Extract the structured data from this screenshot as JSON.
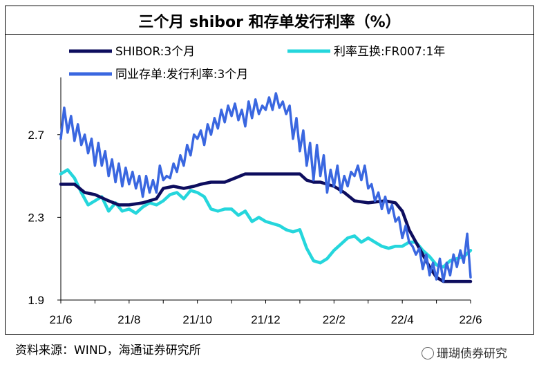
{
  "chart_data": {
    "type": "line",
    "title": "三个月 shibor 和存单发行利率（%）",
    "xlabel": "",
    "ylabel": "",
    "ylim": [
      1.9,
      2.95
    ],
    "yticks": [
      1.9,
      2.3,
      2.7
    ],
    "ytick_labels": [
      "1.9",
      "2.3",
      "2.7"
    ],
    "xtick_labels": [
      "21/6",
      "21/8",
      "21/10",
      "21/12",
      "22/2",
      "22/4",
      "22/6"
    ],
    "xtick_positions": [
      0,
      2,
      4,
      6,
      8,
      10,
      12
    ],
    "xlim": [
      0,
      12
    ],
    "legend_placement": "top",
    "series": [
      {
        "name": "SHIBOR:3个月",
        "color": "#0d0d5e",
        "x": [
          0,
          0.4,
          0.7,
          1.0,
          1.4,
          1.7,
          2.0,
          2.4,
          2.8,
          3.0,
          3.3,
          3.6,
          3.9,
          4.1,
          4.4,
          4.8,
          5.1,
          5.4,
          5.8,
          6.2,
          6.6,
          7.0,
          7.2,
          7.4,
          7.6,
          8.0,
          8.3,
          8.6,
          9.0,
          9.5,
          9.8,
          10.0,
          10.2,
          10.4,
          10.6,
          10.8,
          11.0,
          11.2,
          11.4,
          11.6,
          11.8,
          12.0
        ],
        "values": [
          2.46,
          2.46,
          2.42,
          2.41,
          2.38,
          2.36,
          2.36,
          2.37,
          2.39,
          2.44,
          2.45,
          2.44,
          2.45,
          2.46,
          2.47,
          2.47,
          2.49,
          2.51,
          2.51,
          2.51,
          2.51,
          2.51,
          2.48,
          2.47,
          2.47,
          2.45,
          2.42,
          2.38,
          2.37,
          2.38,
          2.37,
          2.33,
          2.24,
          2.18,
          2.12,
          2.06,
          2.01,
          1.99,
          1.99,
          1.99,
          1.99,
          1.99
        ]
      },
      {
        "name": "利率互换:FR007:1年",
        "color": "#25d6dc",
        "x": [
          0,
          0.2,
          0.4,
          0.6,
          0.8,
          1.0,
          1.2,
          1.4,
          1.6,
          1.8,
          2.0,
          2.2,
          2.4,
          2.6,
          2.8,
          3.0,
          3.2,
          3.4,
          3.6,
          3.8,
          4.0,
          4.2,
          4.4,
          4.6,
          4.8,
          5.0,
          5.2,
          5.4,
          5.6,
          5.8,
          6.0,
          6.2,
          6.4,
          6.6,
          6.8,
          7.0,
          7.2,
          7.4,
          7.6,
          7.8,
          8.0,
          8.2,
          8.4,
          8.6,
          8.8,
          9.0,
          9.2,
          9.4,
          9.6,
          9.8,
          10.0,
          10.2,
          10.4,
          10.6,
          10.8,
          11.0,
          11.2,
          11.4,
          11.6,
          11.8,
          12.0
        ],
        "values": [
          2.51,
          2.53,
          2.49,
          2.42,
          2.36,
          2.38,
          2.4,
          2.33,
          2.37,
          2.33,
          2.34,
          2.32,
          2.35,
          2.37,
          2.36,
          2.38,
          2.41,
          2.42,
          2.39,
          2.43,
          2.42,
          2.4,
          2.34,
          2.33,
          2.34,
          2.34,
          2.31,
          2.33,
          2.28,
          2.3,
          2.28,
          2.27,
          2.26,
          2.24,
          2.23,
          2.24,
          2.15,
          2.09,
          2.08,
          2.1,
          2.14,
          2.17,
          2.2,
          2.21,
          2.18,
          2.2,
          2.18,
          2.16,
          2.15,
          2.16,
          2.16,
          2.18,
          2.18,
          2.14,
          2.11,
          2.07,
          2.06,
          2.09,
          2.1,
          2.11,
          2.14
        ]
      },
      {
        "name": "同业存单:发行利率:3个月",
        "color": "#3a67e0",
        "x": [
          0,
          0.1,
          0.2,
          0.3,
          0.4,
          0.5,
          0.6,
          0.7,
          0.8,
          0.9,
          1.0,
          1.1,
          1.2,
          1.3,
          1.4,
          1.5,
          1.6,
          1.7,
          1.8,
          1.9,
          2.0,
          2.1,
          2.2,
          2.3,
          2.4,
          2.5,
          2.6,
          2.7,
          2.8,
          2.9,
          3.0,
          3.1,
          3.2,
          3.3,
          3.4,
          3.5,
          3.6,
          3.7,
          3.8,
          3.9,
          4.0,
          4.1,
          4.2,
          4.3,
          4.4,
          4.5,
          4.6,
          4.7,
          4.8,
          4.9,
          5.0,
          5.1,
          5.2,
          5.3,
          5.4,
          5.5,
          5.6,
          5.7,
          5.8,
          5.9,
          6.0,
          6.1,
          6.2,
          6.3,
          6.4,
          6.5,
          6.6,
          6.7,
          6.8,
          6.9,
          7.0,
          7.1,
          7.2,
          7.3,
          7.4,
          7.5,
          7.6,
          7.7,
          7.8,
          7.9,
          8.0,
          8.1,
          8.2,
          8.3,
          8.4,
          8.5,
          8.6,
          8.7,
          8.8,
          8.9,
          9.0,
          9.1,
          9.2,
          9.3,
          9.4,
          9.5,
          9.6,
          9.7,
          9.8,
          9.9,
          10.0,
          10.1,
          10.2,
          10.3,
          10.4,
          10.5,
          10.6,
          10.7,
          10.8,
          10.9,
          11.0,
          11.1,
          11.2,
          11.3,
          11.4,
          11.5,
          11.6,
          11.7,
          11.8,
          11.9,
          12.0
        ],
        "values": [
          2.68,
          2.83,
          2.71,
          2.79,
          2.67,
          2.75,
          2.65,
          2.7,
          2.61,
          2.68,
          2.55,
          2.66,
          2.55,
          2.62,
          2.5,
          2.58,
          2.47,
          2.56,
          2.45,
          2.54,
          2.46,
          2.52,
          2.44,
          2.5,
          2.4,
          2.5,
          2.42,
          2.48,
          2.42,
          2.55,
          2.48,
          2.5,
          2.49,
          2.56,
          2.52,
          2.6,
          2.55,
          2.65,
          2.6,
          2.7,
          2.68,
          2.72,
          2.65,
          2.75,
          2.7,
          2.78,
          2.73,
          2.82,
          2.76,
          2.84,
          2.79,
          2.85,
          2.77,
          2.82,
          2.74,
          2.86,
          2.78,
          2.87,
          2.8,
          2.84,
          2.82,
          2.88,
          2.82,
          2.9,
          2.83,
          2.86,
          2.8,
          2.84,
          2.68,
          2.78,
          2.62,
          2.72,
          2.55,
          2.66,
          2.48,
          2.65,
          2.5,
          2.6,
          2.42,
          2.53,
          2.45,
          2.55,
          2.42,
          2.5,
          2.45,
          2.52,
          2.5,
          2.55,
          2.48,
          2.55,
          2.44,
          2.46,
          2.38,
          2.42,
          2.34,
          2.4,
          2.32,
          2.36,
          2.28,
          2.3,
          2.2,
          2.26,
          2.18,
          2.16,
          2.12,
          2.15,
          2.05,
          2.12,
          2.02,
          2.08,
          2.0,
          2.1,
          1.99,
          2.08,
          2.02,
          2.12,
          2.06,
          2.14,
          2.08,
          2.22,
          2.01
        ]
      }
    ]
  },
  "footer": {
    "source": "资料来源：WIND，海通证券研究所",
    "watermark": "珊瑚债券研究"
  }
}
